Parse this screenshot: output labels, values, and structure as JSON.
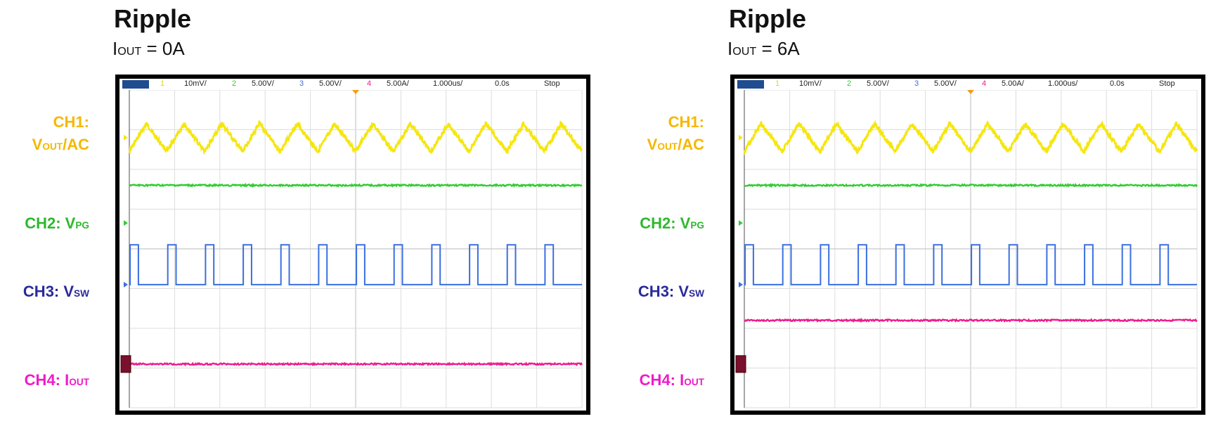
{
  "panels": [
    {
      "title": "Ripple",
      "subtitle_prefix": "I",
      "subtitle_sub": "OUT",
      "subtitle_suffix": " = 0A",
      "channel_labels": [
        {
          "line1": "CH1:",
          "line2_main": "V",
          "line2_sub": "OUT",
          "line2_tail": "/AC"
        },
        {
          "main": "CH2: V",
          "sub": "PG"
        },
        {
          "main": "CH3: V",
          "sub": "SW"
        },
        {
          "main": "CH4: I",
          "sub": "OUT"
        }
      ],
      "scope_bar": {
        "ch1_num": "1",
        "ch1_scale": "10mV/",
        "ch2_num": "2",
        "ch2_scale": "5.00V/",
        "ch3_num": "3",
        "ch3_scale": "5.00V/",
        "ch4_num": "4",
        "ch4_scale": "5.00A/",
        "timebase": "1.000us/",
        "delay": "0.0s",
        "status": "Stop"
      },
      "chart_data": {
        "type": "line",
        "title": "Ripple",
        "subtitle": "IOUT = 0A",
        "x_divisions": 10,
        "y_divisions": 8,
        "series": [
          {
            "name": "CH1: VOUT/AC",
            "kind": "ripple-triangle",
            "cycles": 12,
            "level_div": 1.2,
            "amp_div": 0.35
          },
          {
            "name": "CH2: VPG",
            "kind": "flat",
            "level_div": 2.4
          },
          {
            "name": "CH3: VSW",
            "kind": "square",
            "cycles": 12,
            "duty": 0.22,
            "low_div": 4.9,
            "high_div": 3.9
          },
          {
            "name": "CH4: IOUT",
            "kind": "flat",
            "level_div": 6.9
          }
        ],
        "colors": {
          "ch1": "#f5e60f",
          "ch2": "#33cc33",
          "ch3": "#3a6fe0",
          "ch4": "#ee1c8c"
        }
      }
    },
    {
      "title": "Ripple",
      "subtitle_prefix": "I",
      "subtitle_sub": "OUT",
      "subtitle_suffix": " = 6A",
      "channel_labels": [
        {
          "line1": "CH1:",
          "line2_main": "V",
          "line2_sub": "OUT",
          "line2_tail": "/AC"
        },
        {
          "main": "CH2: V",
          "sub": "PG"
        },
        {
          "main": "CH3: V",
          "sub": "SW"
        },
        {
          "main": "CH4: I",
          "sub": "OUT"
        }
      ],
      "scope_bar": {
        "ch1_num": "1",
        "ch1_scale": "10mV/",
        "ch2_num": "2",
        "ch2_scale": "5.00V/",
        "ch3_num": "3",
        "ch3_scale": "5.00V/",
        "ch4_num": "4",
        "ch4_scale": "5.00A/",
        "timebase": "1.000us/",
        "delay": "0.0s",
        "status": "Stop"
      },
      "chart_data": {
        "type": "line",
        "title": "Ripple",
        "subtitle": "IOUT = 6A",
        "x_divisions": 10,
        "y_divisions": 8,
        "series": [
          {
            "name": "CH1: VOUT/AC",
            "kind": "ripple-triangle",
            "cycles": 12,
            "level_div": 1.2,
            "amp_div": 0.35
          },
          {
            "name": "CH2: VPG",
            "kind": "flat",
            "level_div": 2.4
          },
          {
            "name": "CH3: VSW",
            "kind": "square",
            "cycles": 12,
            "duty": 0.22,
            "low_div": 4.9,
            "high_div": 3.9
          },
          {
            "name": "CH4: IOUT",
            "kind": "flat",
            "level_div": 5.8
          }
        ],
        "colors": {
          "ch1": "#f5e60f",
          "ch2": "#33cc33",
          "ch3": "#3a6fe0",
          "ch4": "#ee1c8c"
        }
      }
    }
  ],
  "label_colors": {
    "ch1": "#f5b800",
    "ch2": "#2eb82e",
    "ch3": "#2a2a9c",
    "ch4": "#ee1cc8"
  }
}
